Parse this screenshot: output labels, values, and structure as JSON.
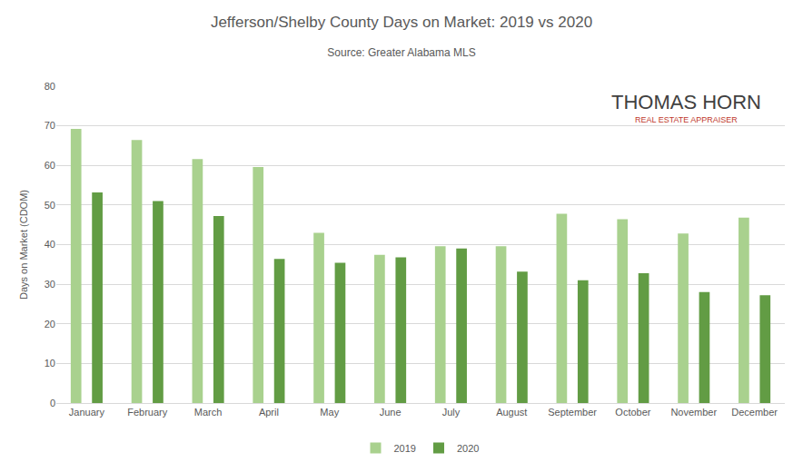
{
  "chart_data": {
    "type": "bar",
    "title": "Jefferson/Shelby County Days on Market: 2019 vs 2020",
    "subtitle": "Source: Greater Alabama MLS",
    "y_label": "Days on Market (CDOM)",
    "annotations": [
      "THOMAS HORN",
      "REAL ESTATE APPRAISER"
    ],
    "categories": [
      "January",
      "February",
      "March",
      "April",
      "May",
      "June",
      "July",
      "August",
      "September",
      "October",
      "November",
      "December"
    ],
    "series": [
      {
        "name": "2019",
        "color": "#a9d18e",
        "values": [
          69.2,
          66.4,
          61.6,
          59.6,
          43,
          37.4,
          39.6,
          39.6,
          47.8,
          46.4,
          42.8,
          46.8
        ]
      },
      {
        "name": "2020",
        "color": "#629c44",
        "values": [
          53.2,
          51,
          47.2,
          36.4,
          35.4,
          36.8,
          39,
          33.2,
          31,
          32.8,
          28,
          27.2
        ]
      }
    ],
    "ylim": [
      0,
      80
    ],
    "yticks": [
      0,
      10,
      20,
      30,
      40,
      50,
      60,
      70,
      80
    ],
    "grid": true,
    "legend": "bottom"
  }
}
